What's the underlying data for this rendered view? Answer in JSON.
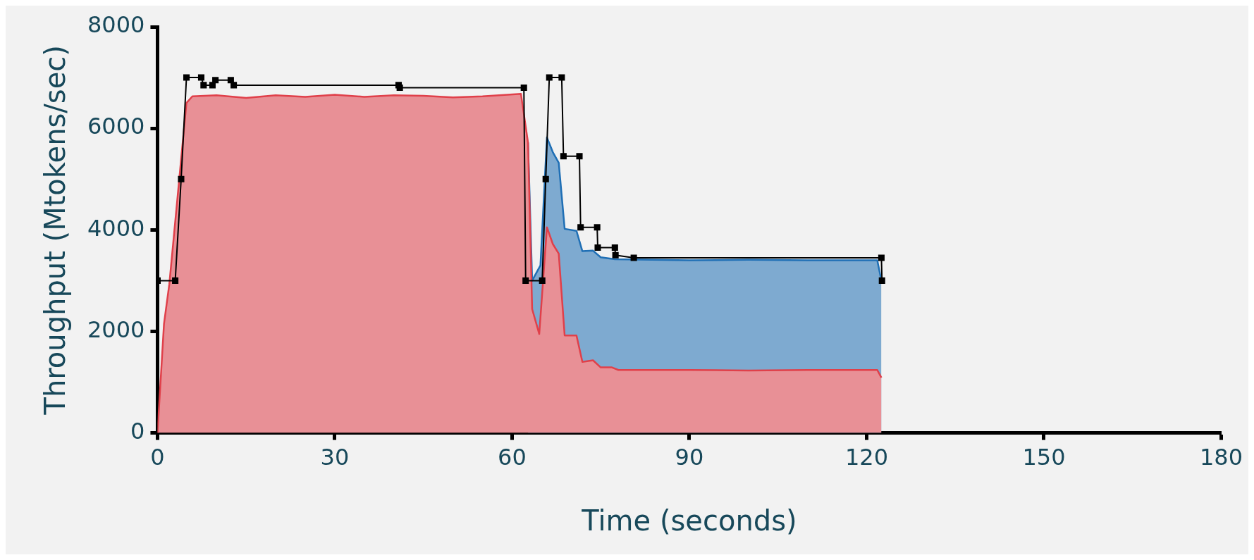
{
  "chart_data": {
    "type": "area",
    "xlabel": "Time (seconds)",
    "ylabel": "Throughput (Mtokens/sec)",
    "xlim": [
      0,
      180
    ],
    "xticks": [
      0,
      30,
      60,
      90,
      120,
      150,
      180
    ],
    "ylim": [
      0,
      8000
    ],
    "yticks": [
      0,
      2000,
      4000,
      6000,
      8000
    ],
    "grid": false,
    "legend": false,
    "series": [
      {
        "type": "area",
        "color": "#e0404a",
        "x": [
          0,
          1.1,
          2,
          4.9,
          5.9,
          10,
          15,
          20,
          25,
          30,
          35,
          40,
          45,
          50,
          55,
          61.5,
          62.7,
          63.4,
          64.6,
          65.9,
          66.9,
          67.9,
          68.9,
          70.9,
          71.9,
          73.7,
          75,
          76.9,
          78,
          90,
          100,
          110,
          121.8,
          122.5
        ],
        "values": [
          0,
          2150,
          2930,
          6500,
          6630,
          6650,
          6600,
          6650,
          6620,
          6660,
          6620,
          6650,
          6640,
          6610,
          6630,
          6680,
          5720,
          2440,
          1950,
          4050,
          3720,
          3530,
          1920,
          1920,
          1400,
          1430,
          1290,
          1290,
          1240,
          1240,
          1230,
          1240,
          1240,
          1090
        ]
      },
      {
        "type": "area",
        "color": "#1f6fb5",
        "x": [
          62.7,
          63.4,
          64.8,
          65.9,
          66.9,
          67.9,
          68.9,
          70.9,
          71.9,
          73.7,
          75,
          77.4,
          90,
          100,
          110,
          121.8,
          122.5
        ],
        "values": [
          5720,
          3000,
          3300,
          5820,
          5530,
          5320,
          4020,
          3980,
          3580,
          3590,
          3460,
          3420,
          3400,
          3410,
          3400,
          3400,
          3000
        ]
      },
      {
        "type": "line",
        "color": "#000000",
        "marker": "square",
        "x": [
          0,
          3,
          4,
          4.9,
          7.4,
          7.8,
          9.3,
          9.8,
          12.4,
          12.9,
          40.8,
          41,
          62,
          62.3,
          65.1,
          65.7,
          66.3,
          68.4,
          68.7,
          71.4,
          71.6,
          74.4,
          74.5,
          77.4,
          77.5,
          80.6,
          122.5,
          122.6
        ],
        "values": [
          3000,
          3000,
          5000,
          7000,
          7000,
          6850,
          6850,
          6950,
          6950,
          6850,
          6850,
          6800,
          6800,
          3000,
          3000,
          5000,
          7000,
          7000,
          5450,
          5450,
          4050,
          4050,
          3650,
          3650,
          3500,
          3450,
          3450,
          3000
        ]
      }
    ]
  }
}
